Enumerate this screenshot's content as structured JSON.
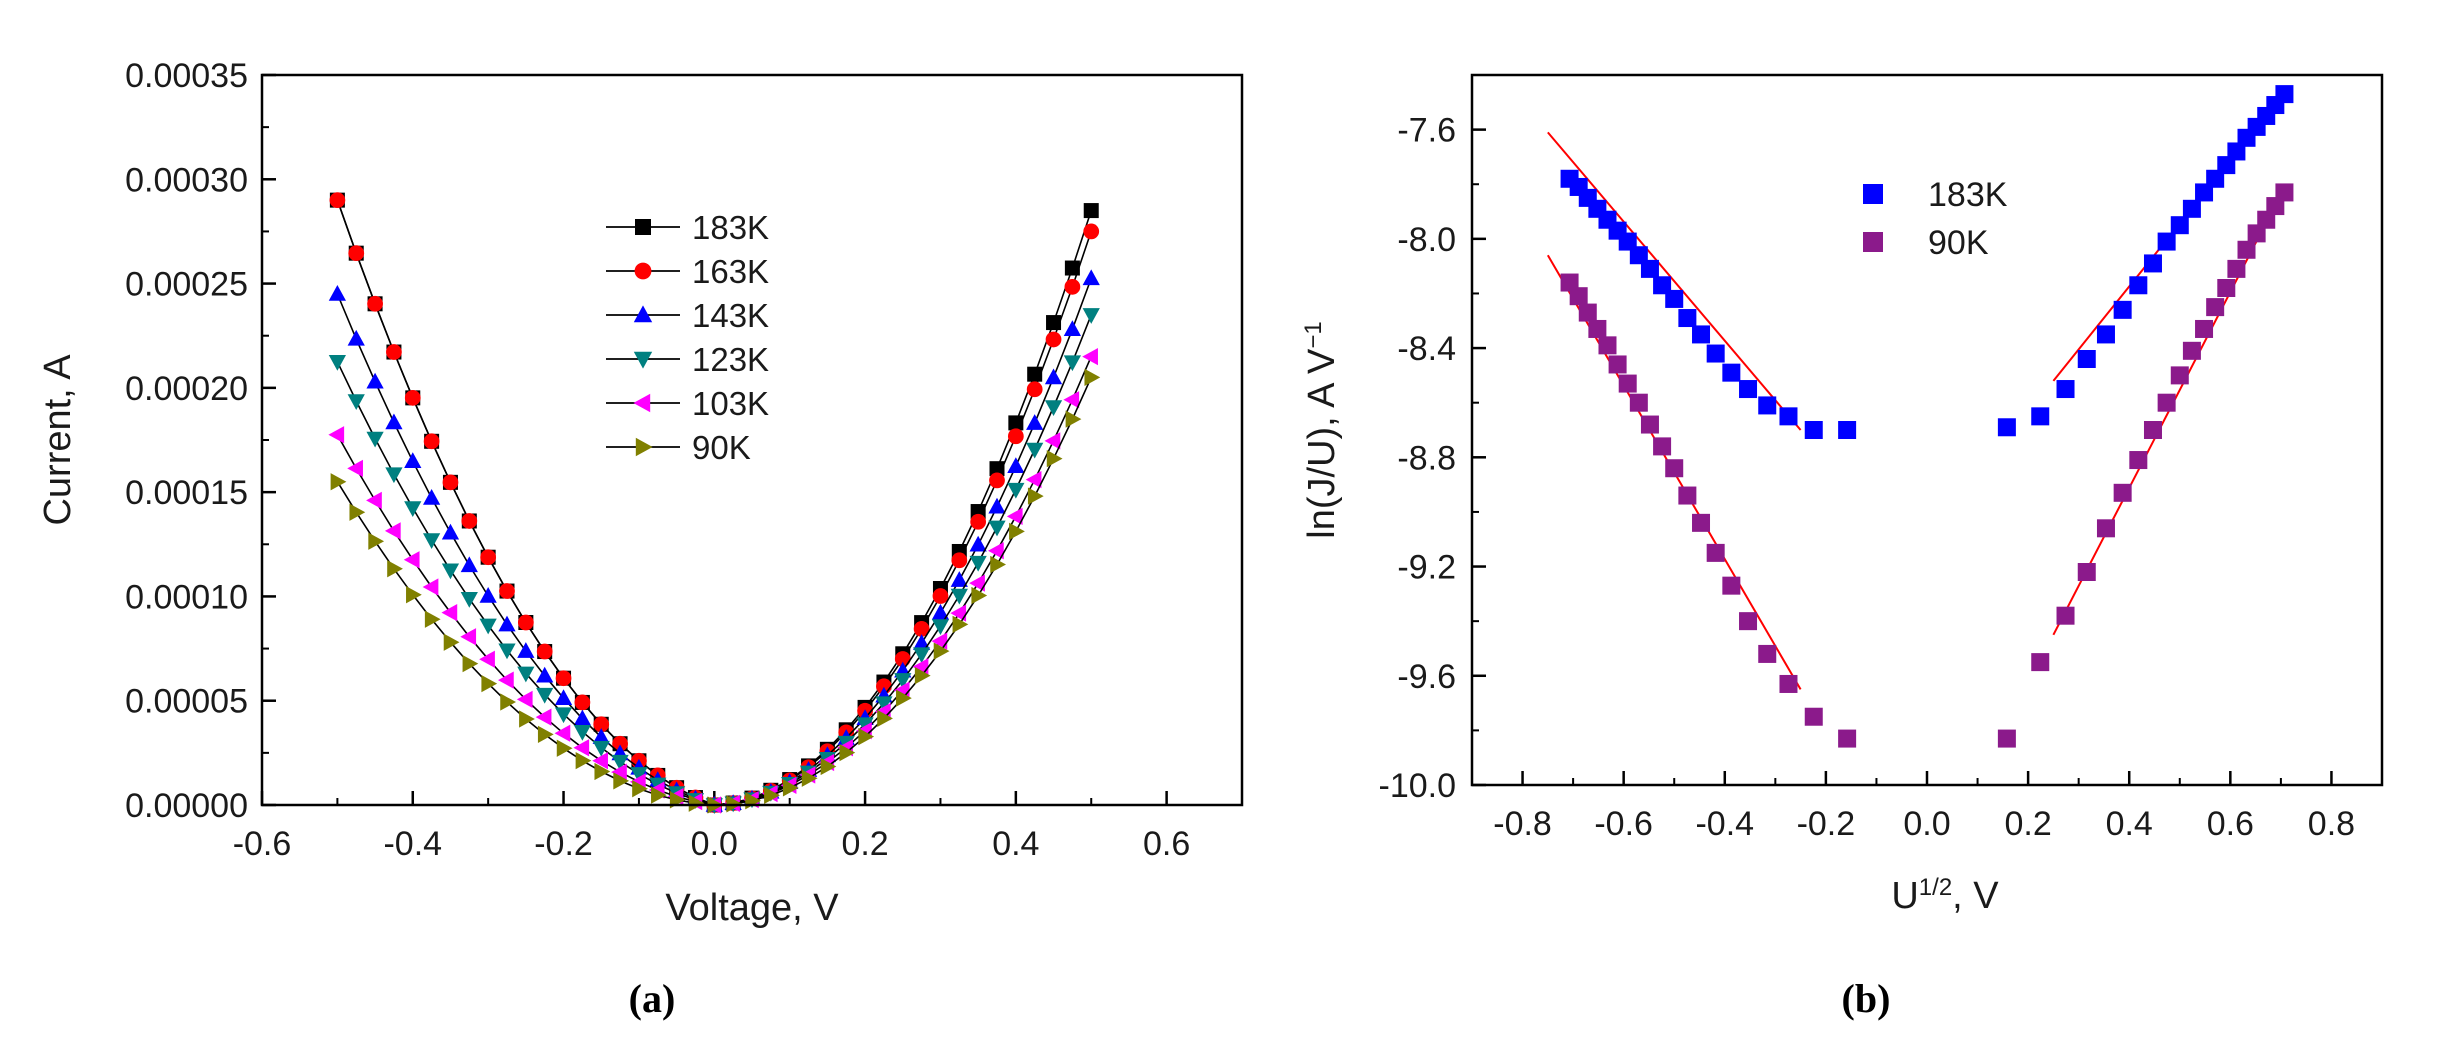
{
  "chart_data": [
    {
      "panel": "(a)",
      "type": "line",
      "xlabel": "Voltage, V",
      "ylabel": "Current, A",
      "xlim": [
        -0.6,
        0.7
      ],
      "ylim": [
        0,
        0.00035
      ],
      "xticks": [
        "-0.6",
        "-0.4",
        "-0.2",
        "0.0",
        "0.2",
        "0.4",
        "0.6"
      ],
      "yticks": [
        "0.00000",
        "0.00005",
        "0.00010",
        "0.00015",
        "0.00020",
        "0.00025",
        "0.00030",
        "0.00035"
      ],
      "legend_position": "top-center",
      "series": [
        {
          "name": "183K",
          "marker": "square",
          "color": "#000000",
          "a_pos": 0.00112,
          "a_neg": 0.00092,
          "b_pos": 1e-05,
          "b_neg": 0.00012
        },
        {
          "name": "163K",
          "marker": "circle",
          "color": "#ff0000",
          "a_pos": 0.00108,
          "a_neg": 0.00092,
          "b_pos": 1e-05,
          "b_neg": 0.00012
        },
        {
          "name": "143K",
          "marker": "triangle-up",
          "color": "#0000ff",
          "a_pos": 0.00099,
          "a_neg": 0.00078,
          "b_pos": 1e-05,
          "b_neg": 0.0001
        },
        {
          "name": "123K",
          "marker": "triangle-down",
          "color": "#008080",
          "a_pos": 0.00092,
          "a_neg": 0.00069,
          "b_pos": 1e-05,
          "b_neg": 8e-05
        },
        {
          "name": "103K",
          "marker": "triangle-left",
          "color": "#ff00ff",
          "a_pos": 0.00084,
          "a_neg": 0.00061,
          "b_pos": 1e-05,
          "b_neg": 5e-05
        },
        {
          "name": "90K",
          "marker": "triangle-right",
          "color": "#808000",
          "a_pos": 0.00082,
          "a_neg": 0.00058,
          "b_pos": 0.0,
          "b_neg": 2e-05
        }
      ],
      "x_points": [
        -0.5,
        -0.475,
        -0.45,
        -0.425,
        -0.4,
        -0.375,
        -0.35,
        -0.325,
        -0.3,
        -0.275,
        -0.25,
        -0.225,
        -0.2,
        -0.175,
        -0.15,
        -0.125,
        -0.1,
        -0.075,
        -0.05,
        -0.025,
        0.0,
        0.025,
        0.05,
        0.075,
        0.1,
        0.125,
        0.15,
        0.175,
        0.2,
        0.225,
        0.25,
        0.275,
        0.3,
        0.325,
        0.35,
        0.375,
        0.4,
        0.425,
        0.45,
        0.475,
        0.5
      ]
    },
    {
      "panel": "(b)",
      "type": "scatter",
      "xlabel": "U",
      "xlabel_sup": "1/2",
      "xlabel_tail": ", V",
      "ylabel": "ln(J/U), A V",
      "ylabel_sup": "−1",
      "xlim": [
        -0.9,
        0.9
      ],
      "ylim": [
        -10.0,
        -7.4
      ],
      "xticks": [
        "-0.8",
        "-0.6",
        "-0.4",
        "-0.2",
        "0.0",
        "0.2",
        "0.4",
        "0.6",
        "0.8"
      ],
      "yticks": [
        "-7.6",
        "-8.0",
        "-8.4",
        "-8.8",
        "-9.2",
        "-9.6",
        "-10.0"
      ],
      "legend_position": "top-center",
      "series": [
        {
          "name": "183K",
          "color": "#0000ff",
          "marker": "square",
          "x": [
            -0.707,
            -0.689,
            -0.671,
            -0.652,
            -0.632,
            -0.612,
            -0.592,
            -0.57,
            -0.548,
            -0.524,
            -0.5,
            -0.474,
            -0.447,
            -0.418,
            -0.387,
            -0.354,
            -0.316,
            -0.274,
            -0.224,
            -0.158,
            0.158,
            0.224,
            0.274,
            0.316,
            0.354,
            0.387,
            0.418,
            0.447,
            0.474,
            0.5,
            0.524,
            0.548,
            0.57,
            0.592,
            0.612,
            0.632,
            0.652,
            0.671,
            0.689,
            0.707
          ],
          "y": [
            -7.78,
            -7.81,
            -7.85,
            -7.89,
            -7.93,
            -7.97,
            -8.01,
            -8.06,
            -8.11,
            -8.17,
            -8.22,
            -8.29,
            -8.35,
            -8.42,
            -8.49,
            -8.55,
            -8.61,
            -8.65,
            -8.7,
            -8.7,
            -8.69,
            -8.65,
            -8.55,
            -8.44,
            -8.35,
            -8.26,
            -8.17,
            -8.09,
            -8.01,
            -7.95,
            -7.89,
            -7.83,
            -7.78,
            -7.73,
            -7.68,
            -7.63,
            -7.59,
            -7.55,
            -7.51,
            -7.47
          ]
        },
        {
          "name": "90K",
          "color": "#8b1a8b",
          "marker": "square",
          "x": [
            -0.707,
            -0.689,
            -0.671,
            -0.652,
            -0.632,
            -0.612,
            -0.592,
            -0.57,
            -0.548,
            -0.524,
            -0.5,
            -0.474,
            -0.447,
            -0.418,
            -0.387,
            -0.354,
            -0.316,
            -0.274,
            -0.224,
            -0.158,
            0.158,
            0.224,
            0.274,
            0.316,
            0.354,
            0.387,
            0.418,
            0.447,
            0.474,
            0.5,
            0.524,
            0.548,
            0.57,
            0.592,
            0.612,
            0.632,
            0.652,
            0.671,
            0.689,
            0.707
          ],
          "y": [
            -8.16,
            -8.21,
            -8.27,
            -8.33,
            -8.39,
            -8.46,
            -8.53,
            -8.6,
            -8.68,
            -8.76,
            -8.84,
            -8.94,
            -9.04,
            -9.15,
            -9.27,
            -9.4,
            -9.52,
            -9.63,
            -9.75,
            -9.83,
            -9.83,
            -9.55,
            -9.38,
            -9.22,
            -9.06,
            -8.93,
            -8.81,
            -8.7,
            -8.6,
            -8.5,
            -8.41,
            -8.33,
            -8.25,
            -8.18,
            -8.11,
            -8.04,
            -7.98,
            -7.93,
            -7.88,
            -7.83
          ]
        }
      ],
      "fit_lines": [
        {
          "x": [
            -0.75,
            -0.25
          ],
          "y": [
            -7.61,
            -8.7
          ]
        },
        {
          "x": [
            0.25,
            0.71
          ],
          "y": [
            -8.52,
            -7.46
          ]
        },
        {
          "x": [
            -0.75,
            -0.25
          ],
          "y": [
            -8.06,
            -9.65
          ]
        },
        {
          "x": [
            0.25,
            0.71
          ],
          "y": [
            -9.45,
            -7.8
          ]
        }
      ]
    }
  ],
  "captions": {
    "a": "(a)",
    "b": "(b)"
  }
}
